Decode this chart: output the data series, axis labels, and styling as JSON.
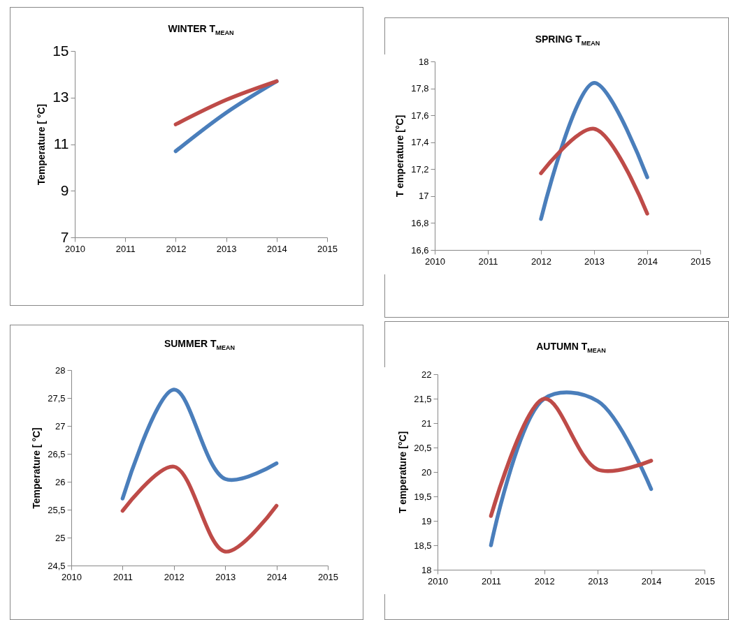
{
  "chart_data": [
    {
      "type": "line",
      "title": "WINTER T$_{MEAN}$",
      "ylabel": "Temperature [ °C]",
      "x": [
        2012,
        2013,
        2014
      ],
      "series": [
        {
          "color": "#4a7ebb",
          "values": [
            10.7,
            12.35,
            13.7
          ]
        },
        {
          "color": "#be4b48",
          "values": [
            11.85,
            12.9,
            13.7
          ]
        }
      ],
      "xlim": [
        2010,
        2015
      ],
      "xticks": [
        2010,
        2011,
        2012,
        2013,
        2014,
        2015
      ],
      "ylim": [
        7,
        15
      ],
      "yticks": [
        7,
        9,
        11,
        13,
        15
      ]
    },
    {
      "type": "line",
      "title": "SPRING T$_{MEAN}$",
      "ylabel": "T emperature [°C]",
      "x": [
        2012,
        2013,
        2014
      ],
      "series": [
        {
          "color": "#4a7ebb",
          "values": [
            16.83,
            17.84,
            17.14
          ]
        },
        {
          "color": "#be4b48",
          "values": [
            17.17,
            17.5,
            16.87
          ]
        }
      ],
      "xlim": [
        2010,
        2015
      ],
      "xticks": [
        2010,
        2011,
        2012,
        2013,
        2014,
        2015
      ],
      "ylim": [
        16.6,
        18
      ],
      "yticks": [
        {
          "value": 16.6,
          "label": "16,6"
        },
        {
          "value": 16.8,
          "label": "16,8"
        },
        17,
        {
          "value": 17.2,
          "label": "17,2"
        },
        {
          "value": 17.4,
          "label": "17,4"
        },
        {
          "value": 17.6,
          "label": "17,6"
        },
        {
          "value": 17.8,
          "label": "17,8"
        },
        18
      ]
    },
    {
      "type": "line",
      "title": "SUMMER T$_{MEAN}$",
      "ylabel": "Temperature [ °C]",
      "x": [
        2011,
        2012,
        2013,
        2014
      ],
      "series": [
        {
          "color": "#4a7ebb",
          "values": [
            25.7,
            27.65,
            26.05,
            26.33
          ]
        },
        {
          "color": "#be4b48",
          "values": [
            25.48,
            26.27,
            24.75,
            25.57
          ]
        }
      ],
      "xlim": [
        2010,
        2015
      ],
      "xticks": [
        2010,
        2011,
        2012,
        2013,
        2014,
        2015
      ],
      "ylim": [
        24.5,
        28
      ],
      "yticks": [
        {
          "value": 24.5,
          "label": "24,5"
        },
        25,
        {
          "value": 25.5,
          "label": "25,5"
        },
        26,
        {
          "value": 26.5,
          "label": "26,5"
        },
        27,
        {
          "value": 27.5,
          "label": "27,5"
        },
        28
      ]
    },
    {
      "type": "line",
      "title": "AUTUMN T$_{MEAN}$",
      "ylabel": "T emperature [°C]",
      "x": [
        2011,
        2012,
        2013,
        2014
      ],
      "series": [
        {
          "color": "#4a7ebb",
          "values": [
            18.5,
            21.5,
            21.45,
            19.65
          ]
        },
        {
          "color": "#be4b48",
          "values": [
            19.1,
            21.5,
            20.05,
            20.23
          ]
        }
      ],
      "xlim": [
        2010,
        2015
      ],
      "xticks": [
        2010,
        2011,
        2012,
        2013,
        2014,
        2015
      ],
      "ylim": [
        18,
        22
      ],
      "yticks": [
        18,
        {
          "value": 18.5,
          "label": "18,5"
        },
        19,
        {
          "value": 19.5,
          "label": "19,5"
        },
        20,
        {
          "value": 20.5,
          "label": "20,5"
        },
        21,
        {
          "value": 21.5,
          "label": "21,5"
        },
        22
      ]
    }
  ]
}
